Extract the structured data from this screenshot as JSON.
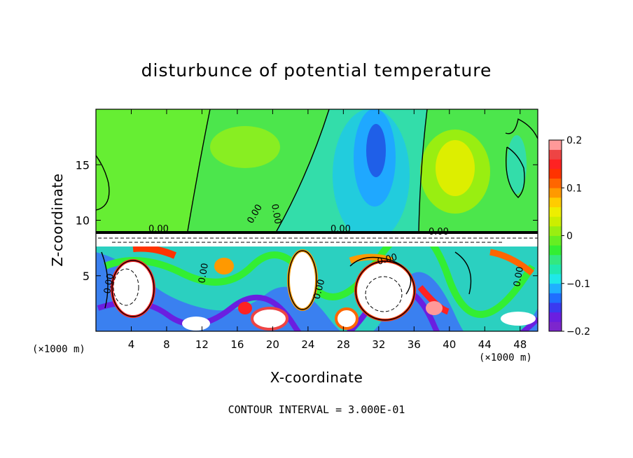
{
  "chart_data": {
    "type": "heatmap",
    "title": "disturbunce of potential temperature",
    "xlabel": "X-coordinate",
    "ylabel": "Z-coordinate",
    "x_unit_label_left": "(×1000 m)",
    "x_unit_label_right": "(×1000 m)",
    "footer": "CONTOUR INTERVAL = 3.000E-01",
    "xlim": [
      0,
      50
    ],
    "ylim": [
      0,
      20
    ],
    "xticks": [
      "4",
      "8",
      "12",
      "16",
      "20",
      "24",
      "28",
      "32",
      "36",
      "40",
      "44",
      "48"
    ],
    "yticks": [
      "5",
      "10",
      "15"
    ],
    "colorbar": {
      "range": [
        -0.2,
        0.2
      ],
      "tick_labels": [
        "0.2",
        "0.1",
        "0",
        "−0.1",
        "−0.2"
      ],
      "colors": [
        "#7d26cd",
        "#6a1fe0",
        "#3a3af0",
        "#1f6fff",
        "#1fb0ff",
        "#1fe8e8",
        "#20e8b0",
        "#33e880",
        "#33ee33",
        "#66ee22",
        "#99ee11",
        "#ccee00",
        "#eeee00",
        "#ffcc00",
        "#ff9900",
        "#ff6600",
        "#ff3300",
        "#ff2222",
        "#ee4444",
        "#ff9999"
      ]
    },
    "contour_labels": [
      "0.00",
      "0.00",
      "0.00",
      "0.00",
      "0.00",
      "0.00",
      "0.00",
      "0.00",
      "0.00",
      "0.00"
    ]
  }
}
